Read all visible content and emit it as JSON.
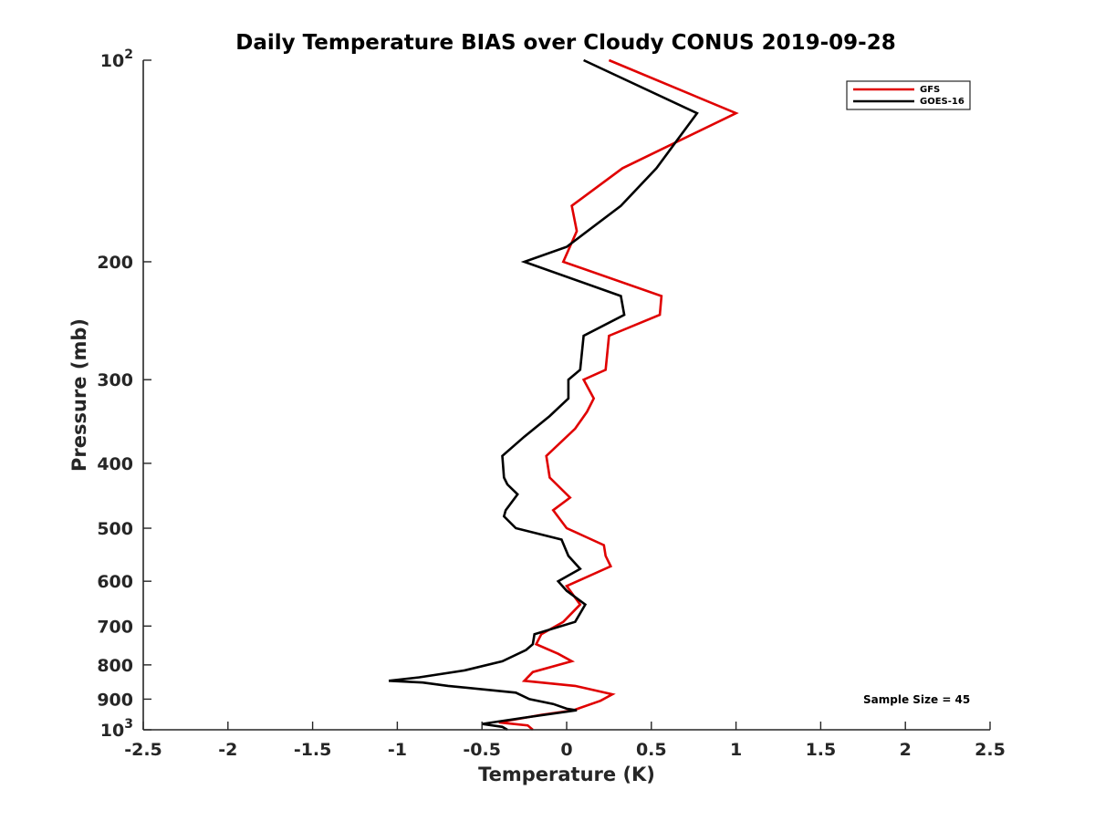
{
  "chart_data": {
    "type": "line",
    "title": "Daily Temperature BIAS over Cloudy CONUS 2019-09-28",
    "xlabel": "Temperature (K)",
    "ylabel": "Pressure (mb)",
    "xlim": [
      -2.5,
      2.5
    ],
    "ylim": [
      1000,
      100
    ],
    "yscale": "log",
    "ydirection": "reverse",
    "xticks": [
      -2.5,
      -2,
      -1.5,
      -1,
      -0.5,
      0,
      0.5,
      1,
      1.5,
      2,
      2.5
    ],
    "xtick_labels": [
      "-2.5",
      "-2",
      "-1.5",
      "-1",
      "-0.5",
      "0",
      "0.5",
      "1",
      "1.5",
      "2",
      "2.5"
    ],
    "yticks": [
      100,
      200,
      300,
      400,
      500,
      600,
      700,
      800,
      900,
      1000
    ],
    "ytick_labels": [
      {
        "base": "10",
        "exp": "2"
      },
      {
        "base": "200",
        "exp": ""
      },
      {
        "base": "300",
        "exp": ""
      },
      {
        "base": "400",
        "exp": ""
      },
      {
        "base": "500",
        "exp": ""
      },
      {
        "base": "600",
        "exp": ""
      },
      {
        "base": "700",
        "exp": ""
      },
      {
        "base": "800",
        "exp": ""
      },
      {
        "base": "900",
        "exp": ""
      },
      {
        "base": "10",
        "exp": "3"
      }
    ],
    "legend_position": "top-right",
    "annotation": "Sample Size = 45",
    "series": [
      {
        "name": "GFS",
        "color": "#e00000",
        "points": [
          {
            "x": 0.25,
            "p": 100
          },
          {
            "x": 1.0,
            "p": 120
          },
          {
            "x": 0.33,
            "p": 145
          },
          {
            "x": 0.03,
            "p": 165
          },
          {
            "x": 0.06,
            "p": 180
          },
          {
            "x": -0.02,
            "p": 200
          },
          {
            "x": 0.56,
            "p": 225
          },
          {
            "x": 0.55,
            "p": 240
          },
          {
            "x": 0.25,
            "p": 258
          },
          {
            "x": 0.23,
            "p": 290
          },
          {
            "x": 0.1,
            "p": 300
          },
          {
            "x": 0.16,
            "p": 320
          },
          {
            "x": 0.12,
            "p": 335
          },
          {
            "x": 0.05,
            "p": 355
          },
          {
            "x": -0.12,
            "p": 390
          },
          {
            "x": -0.1,
            "p": 420
          },
          {
            "x": 0.02,
            "p": 450
          },
          {
            "x": -0.08,
            "p": 470
          },
          {
            "x": 0.0,
            "p": 500
          },
          {
            "x": 0.22,
            "p": 530
          },
          {
            "x": 0.23,
            "p": 550
          },
          {
            "x": 0.26,
            "p": 570
          },
          {
            "x": 0.0,
            "p": 610
          },
          {
            "x": 0.08,
            "p": 650
          },
          {
            "x": -0.02,
            "p": 690
          },
          {
            "x": -0.15,
            "p": 720
          },
          {
            "x": -0.18,
            "p": 745
          },
          {
            "x": -0.05,
            "p": 770
          },
          {
            "x": 0.03,
            "p": 790
          },
          {
            "x": -0.2,
            "p": 820
          },
          {
            "x": -0.25,
            "p": 845
          },
          {
            "x": 0.05,
            "p": 860
          },
          {
            "x": 0.27,
            "p": 885
          },
          {
            "x": 0.2,
            "p": 905
          },
          {
            "x": 0.04,
            "p": 935
          },
          {
            "x": -0.15,
            "p": 950
          },
          {
            "x": -0.4,
            "p": 975
          },
          {
            "x": -0.23,
            "p": 985
          },
          {
            "x": -0.2,
            "p": 1000
          }
        ]
      },
      {
        "name": "GOES-16",
        "color": "#000000",
        "points": [
          {
            "x": 0.1,
            "p": 100
          },
          {
            "x": 0.77,
            "p": 120
          },
          {
            "x": 0.53,
            "p": 145
          },
          {
            "x": 0.32,
            "p": 165
          },
          {
            "x": 0.0,
            "p": 190
          },
          {
            "x": -0.25,
            "p": 200
          },
          {
            "x": 0.32,
            "p": 225
          },
          {
            "x": 0.34,
            "p": 240
          },
          {
            "x": 0.1,
            "p": 258
          },
          {
            "x": 0.08,
            "p": 290
          },
          {
            "x": 0.01,
            "p": 300
          },
          {
            "x": 0.01,
            "p": 320
          },
          {
            "x": -0.1,
            "p": 340
          },
          {
            "x": -0.25,
            "p": 365
          },
          {
            "x": -0.38,
            "p": 390
          },
          {
            "x": -0.37,
            "p": 420
          },
          {
            "x": -0.35,
            "p": 430
          },
          {
            "x": -0.29,
            "p": 445
          },
          {
            "x": -0.36,
            "p": 470
          },
          {
            "x": -0.37,
            "p": 480
          },
          {
            "x": -0.3,
            "p": 500
          },
          {
            "x": -0.03,
            "p": 520
          },
          {
            "x": 0.01,
            "p": 550
          },
          {
            "x": 0.08,
            "p": 575
          },
          {
            "x": -0.05,
            "p": 600
          },
          {
            "x": 0.0,
            "p": 620
          },
          {
            "x": 0.11,
            "p": 650
          },
          {
            "x": 0.05,
            "p": 690
          },
          {
            "x": -0.19,
            "p": 720
          },
          {
            "x": -0.2,
            "p": 745
          },
          {
            "x": -0.24,
            "p": 760
          },
          {
            "x": -0.38,
            "p": 790
          },
          {
            "x": -0.6,
            "p": 815
          },
          {
            "x": -0.87,
            "p": 835
          },
          {
            "x": -1.05,
            "p": 845
          },
          {
            "x": -0.85,
            "p": 850
          },
          {
            "x": -0.7,
            "p": 860
          },
          {
            "x": -0.3,
            "p": 880
          },
          {
            "x": -0.22,
            "p": 900
          },
          {
            "x": -0.08,
            "p": 915
          },
          {
            "x": 0.0,
            "p": 930
          },
          {
            "x": 0.06,
            "p": 935
          },
          {
            "x": -0.26,
            "p": 960
          },
          {
            "x": -0.5,
            "p": 980
          },
          {
            "x": -0.38,
            "p": 990
          },
          {
            "x": -0.35,
            "p": 1000
          }
        ]
      }
    ]
  }
}
